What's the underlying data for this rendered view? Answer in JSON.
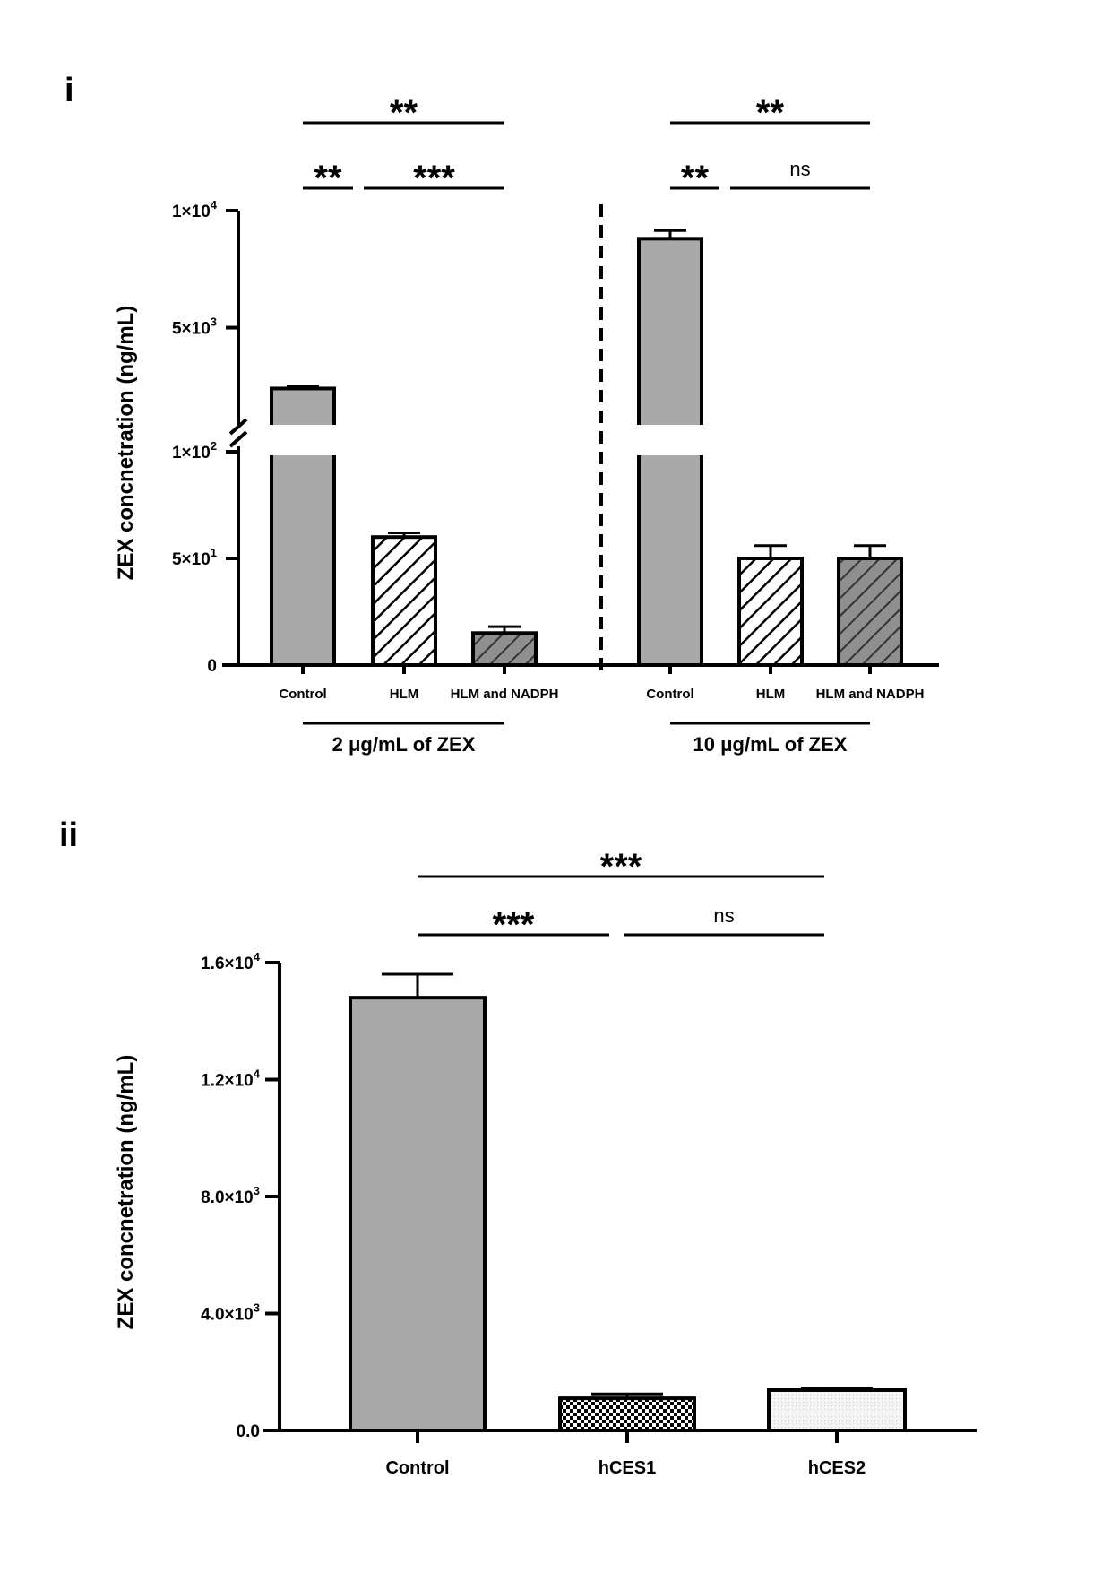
{
  "chart_data": [
    {
      "panel": "i",
      "type": "bar",
      "ylabel": "ZEX concnetration (ng/mL)",
      "y_axis": {
        "broken": true,
        "lower_segment": {
          "range": [
            0,
            100
          ],
          "ticks": [
            {
              "value": 0,
              "label": "0"
            },
            {
              "value": 50,
              "base": "5×10",
              "exp": "1"
            },
            {
              "value": 100,
              "base": "1×10",
              "exp": "2"
            }
          ]
        },
        "upper_segment": {
          "range": [
            1000,
            10000
          ],
          "ticks": [
            {
              "value": 5000,
              "base": "5×10",
              "exp": "3"
            },
            {
              "value": 10000,
              "base": "1×10",
              "exp": "4"
            }
          ]
        }
      },
      "groups": [
        {
          "label": "2 μg/mL of ZEX",
          "categories": [
            "Control",
            "HLM",
            "HLM and NADPH"
          ],
          "values": [
            2400,
            60,
            15
          ],
          "errors": [
            100,
            2,
            3
          ],
          "patterns": [
            "solid-gray",
            "hatch-white",
            "hatch-gray"
          ],
          "significance": [
            {
              "from": 0,
              "to": 1,
              "label": "**"
            },
            {
              "from": 1,
              "to": 2,
              "label": "***"
            },
            {
              "from": 0,
              "to": 2,
              "label": "**"
            }
          ]
        },
        {
          "label": "10 μg/mL of ZEX",
          "categories": [
            "Control",
            "HLM",
            "HLM and NADPH"
          ],
          "values": [
            8800,
            50,
            50
          ],
          "errors": [
            350,
            6,
            6
          ],
          "patterns": [
            "solid-gray",
            "hatch-white",
            "hatch-gray"
          ],
          "significance": [
            {
              "from": 0,
              "to": 1,
              "label": "**"
            },
            {
              "from": 1,
              "to": 2,
              "label": "ns"
            },
            {
              "from": 0,
              "to": 2,
              "label": "**"
            }
          ]
        }
      ]
    },
    {
      "panel": "ii",
      "type": "bar",
      "ylabel": "ZEX concnetration (ng/mL)",
      "ylim": [
        0,
        16000
      ],
      "yticks": [
        {
          "value": 0,
          "label": "0.0"
        },
        {
          "value": 4000,
          "base": "4.0×10",
          "exp": "3"
        },
        {
          "value": 8000,
          "base": "8.0×10",
          "exp": "3"
        },
        {
          "value": 12000,
          "base": "1.2×10",
          "exp": "4"
        },
        {
          "value": 16000,
          "base": "1.6×10",
          "exp": "4"
        }
      ],
      "categories": [
        "Control",
        "hCES1",
        "hCES2"
      ],
      "values": [
        14800,
        1100,
        1380
      ],
      "errors": [
        800,
        150,
        60
      ],
      "patterns": [
        "solid-gray",
        "checker",
        "dots-light"
      ],
      "significance": [
        {
          "from": 0,
          "to": 1,
          "label": "***"
        },
        {
          "from": 1,
          "to": 2,
          "label": "ns"
        },
        {
          "from": 0,
          "to": 2,
          "label": "***"
        }
      ]
    }
  ]
}
